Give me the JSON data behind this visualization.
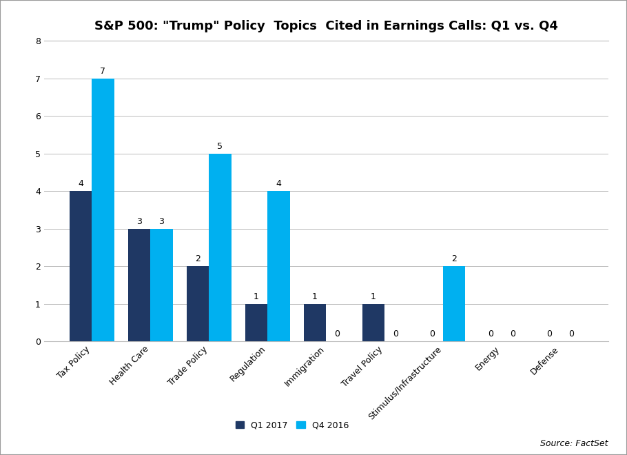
{
  "title": "S&P 500: \"Trump\" Policy  Topics  Cited in Earnings Calls: Q1 vs. Q4",
  "categories": [
    "Tax Policy",
    "Health Care",
    "Trade Policy",
    "Regulation",
    "Immigration",
    "Travel Policy",
    "Stimulus/Infrastructure",
    "Energy",
    "Defense"
  ],
  "q1_2017": [
    4,
    3,
    2,
    1,
    1,
    1,
    0,
    0,
    0
  ],
  "q4_2016": [
    7,
    3,
    5,
    4,
    0,
    0,
    2,
    0,
    0
  ],
  "color_q1": "#1F3864",
  "color_q4": "#00B0F0",
  "ylim": [
    0,
    8
  ],
  "yticks": [
    0,
    1,
    2,
    3,
    4,
    5,
    6,
    7,
    8
  ],
  "legend_q1": "Q1 2017",
  "legend_q4": "Q4 2016",
  "source_text": "Source: FactSet",
  "bar_width": 0.38,
  "background_color": "#FFFFFF",
  "grid_color": "#BBBBBB",
  "title_fontsize": 13,
  "label_fontsize": 9,
  "tick_fontsize": 9,
  "source_fontsize": 9
}
